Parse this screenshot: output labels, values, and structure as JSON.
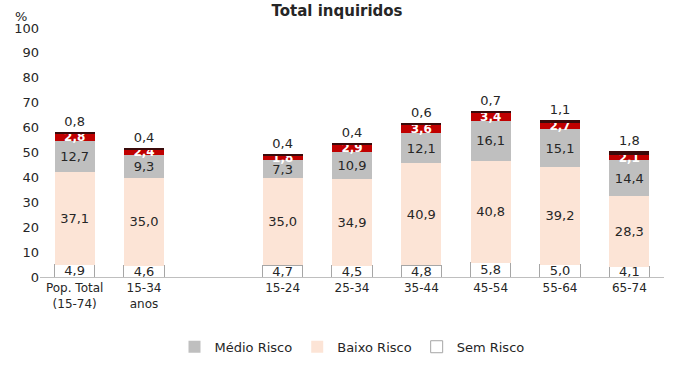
{
  "chart_data": {
    "type": "bar",
    "title": "Total inquiridos",
    "y_label": "%",
    "stacked": true,
    "data_labels": true,
    "legend": "bottom",
    "grid": false,
    "categories": [
      "Pop. Total (15-74)",
      "15-34 anos",
      null,
      "15-24",
      "25-34",
      "35-44",
      "45-54",
      "55-64",
      "65-74"
    ],
    "ylim": [
      0,
      100
    ],
    "yticks": [
      0,
      10,
      20,
      30,
      40,
      50,
      60,
      70,
      80,
      90,
      100
    ],
    "series": [
      {
        "name": "Sem Risco",
        "color": "#FFFFFF",
        "values": [
          4.9,
          4.6,
          null,
          4.7,
          4.5,
          4.8,
          5.8,
          5.0,
          4.1
        ],
        "value_labels": [
          "4,9",
          "4,6",
          null,
          "4,7",
          "4,5",
          "4,8",
          "5,8",
          "5,0",
          "4,1"
        ]
      },
      {
        "name": "Baixo Risco",
        "color": "#FCE4D6",
        "values": [
          37.1,
          35.0,
          null,
          35.0,
          34.9,
          40.9,
          40.8,
          39.2,
          28.3
        ],
        "value_labels": [
          "37,1",
          "35,0",
          null,
          "35,0",
          "34,9",
          "40,9",
          "40,8",
          "39,2",
          "28,3"
        ]
      },
      {
        "name": "Médio Risco",
        "color": "#BFBFBF",
        "values": [
          12.7,
          9.3,
          null,
          7.3,
          10.9,
          12.1,
          16.1,
          15.1,
          14.4
        ],
        "value_labels": [
          "12,7",
          "9,3",
          null,
          "7,3",
          "10,9",
          "12,1",
          "16,1",
          "15,1",
          "14,4"
        ]
      },
      {
        "color": "#C00000",
        "values": [
          2.8,
          2.4,
          null,
          1.8,
          2.9,
          3.6,
          3.4,
          2.7,
          2.1
        ],
        "value_labels": [
          "2,8",
          "2,4",
          null,
          "1,8",
          "2,9",
          "3,6",
          "3,4",
          "2,7",
          "2,1"
        ]
      },
      {
        "color": "#3A0A0A",
        "values": [
          0.8,
          0.4,
          null,
          0.4,
          0.4,
          0.6,
          0.7,
          1.1,
          1.8
        ],
        "value_labels": [
          "0,8",
          "0,4",
          null,
          "0,4",
          "0,4",
          "0,6",
          "0,7",
          "1,1",
          "1,8"
        ]
      }
    ]
  }
}
